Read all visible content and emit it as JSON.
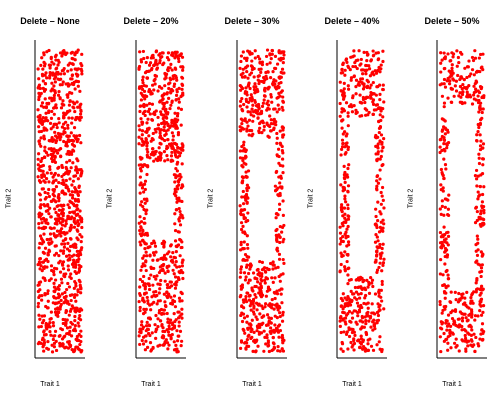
{
  "chart_data": [
    {
      "type": "scatter",
      "title": "Delete – None",
      "xlabel": "Trait 1",
      "ylabel": "Trait 2",
      "xlim": [
        0,
        1
      ],
      "ylim": [
        0,
        1
      ],
      "point_color": "#ff0000",
      "n_points": 1000,
      "deleted_region": null,
      "axes": "left and bottom lines only, no ticks, no grid"
    },
    {
      "type": "scatter",
      "title": "Delete – 20%",
      "xlabel": "Trait 1",
      "ylabel": "Trait 2",
      "xlim": [
        0,
        1
      ],
      "ylim": [
        0,
        1
      ],
      "point_color": "#ff0000",
      "n_points": 800,
      "deleted_region": {
        "x": [
          0.2,
          0.8
        ],
        "y": [
          0.37,
          0.63
        ],
        "fraction": 0.2
      },
      "axes": "left and bottom lines only, no ticks, no grid"
    },
    {
      "type": "scatter",
      "title": "Delete – 30%",
      "xlabel": "Trait 1",
      "ylabel": "Trait 2",
      "xlim": [
        0,
        1
      ],
      "ylim": [
        0,
        1
      ],
      "point_color": "#ff0000",
      "n_points": 700,
      "deleted_region": {
        "x": [
          0.2,
          0.8
        ],
        "y": [
          0.3,
          0.71
        ],
        "fraction": 0.3
      },
      "axes": "left and bottom lines only, no ticks, no grid"
    },
    {
      "type": "scatter",
      "title": "Delete – 40%",
      "xlabel": "Trait 1",
      "ylabel": "Trait 2",
      "xlim": [
        0,
        1
      ],
      "ylim": [
        0,
        1
      ],
      "point_color": "#ff0000",
      "n_points": 600,
      "deleted_region": {
        "x": [
          0.2,
          0.8
        ],
        "y": [
          0.25,
          0.78
        ],
        "fraction": 0.4
      },
      "axes": "left and bottom lines only, no ticks, no grid"
    },
    {
      "type": "scatter",
      "title": "Delete – 50%",
      "xlabel": "Trait 1",
      "ylabel": "Trait 2",
      "xlim": [
        0,
        1
      ],
      "ylim": [
        0,
        1
      ],
      "point_color": "#ff0000",
      "n_points": 500,
      "deleted_region": {
        "x": [
          0.2,
          0.8
        ],
        "y": [
          0.2,
          0.82
        ],
        "fraction": 0.5
      },
      "axes": "left and bottom lines only, no ticks, no grid"
    }
  ]
}
